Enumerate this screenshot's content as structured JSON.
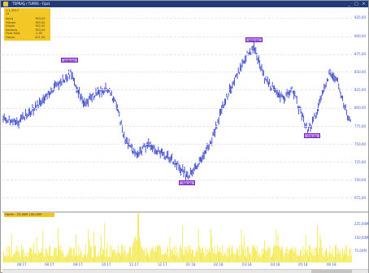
{
  "window": {
    "title": "TÜPRAŞ / TUPRS  -  Fiyat",
    "minimize": "_",
    "maximize": "□",
    "close": "×"
  },
  "info_box": {
    "date": "1.1.2017",
    "period": "15",
    "rows": [
      {
        "k": "Açılış",
        "v": "763,00"
      },
      {
        "k": "Yüksek",
        "v": "765,00"
      },
      {
        "k": "Düşük",
        "v": "762,00"
      },
      {
        "k": "Kapanış",
        "v": "763,50"
      },
      {
        "k": "Fiyat Değ.",
        "v": "-2,00"
      },
      {
        "k": "Hacim",
        "v": "421,50"
      }
    ]
  },
  "price_axis": [
    "925,00",
    "900,00",
    "875,00",
    "850,00",
    "825,00",
    "800,00",
    "775,00",
    "750,00",
    "725,00",
    "700,00",
    "675,00"
  ],
  "volume_axis": [
    "225,00M",
    "150,00M",
    "75,00M"
  ],
  "volume_label": "Hacim : 22,00M  100,00M",
  "time_axis": [
    "08:17",
    "08:17",
    "08:17",
    "10:17",
    "11:17",
    "12:17",
    "01:18",
    "02:18",
    "03:18",
    "04:18",
    "05:18",
    "06:18"
  ],
  "price_labels": {
    "peak1": "836,00",
    "high": "892,50",
    "low": "705,00",
    "right_low": "775,50"
  },
  "colors": {
    "price": "#3340cc",
    "volume": "#f2e73a",
    "label_bg": "#cc88ff",
    "axis_text": "#3b5bdb"
  }
}
